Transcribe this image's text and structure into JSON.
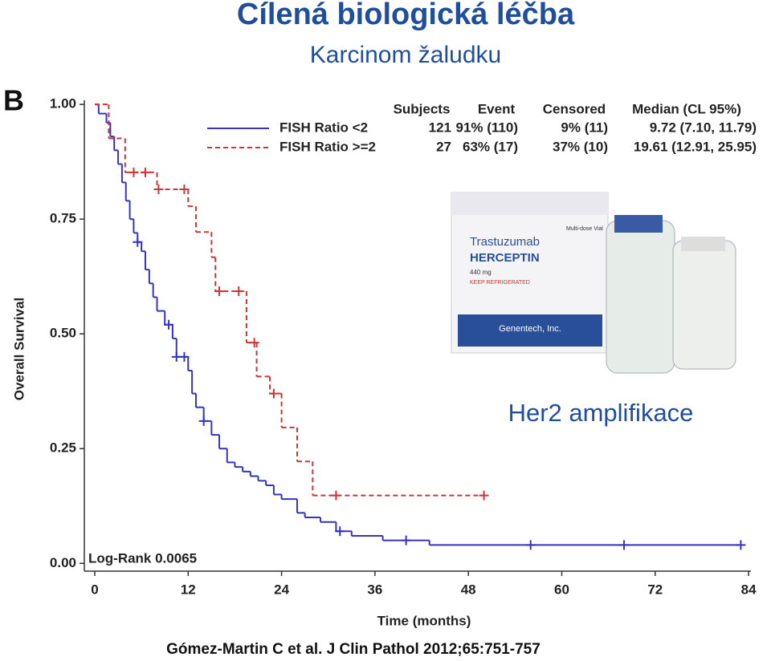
{
  "header": {
    "title": "Cílená biologická léčba",
    "subtitle": "Karcinom žaludku"
  },
  "panel_label": "B",
  "annotation": "Her2 amplifikace",
  "citation": "Gómez-Martin C et al. J Clin Pathol 2012;65:751-757",
  "product_image": {
    "texts": [
      "Trastuzumab",
      "HERCEPTIN",
      "440 mg",
      "KEEP REFRIGERATED",
      "Genentech, Inc.",
      "Multi-dose Vial"
    ]
  },
  "chart_data": {
    "type": "step",
    "x_label": "Time (months)",
    "y_label": "Overall Survival",
    "xlim": [
      -1.34,
      84.3
    ],
    "ylim": [
      -0.017,
      1.009
    ],
    "xticks": [
      0,
      12,
      24,
      36,
      48,
      60,
      72,
      84
    ],
    "yticks": [
      {
        "value": 0,
        "label": "0.00"
      },
      {
        "value": 0.25,
        "label": "0.25"
      },
      {
        "value": 0.5,
        "label": "0.50"
      },
      {
        "value": 0.75,
        "label": "0.75"
      },
      {
        "value": 1,
        "label": "1.00"
      }
    ],
    "annotation": "Log-Rank  0.0065",
    "series": [
      {
        "name": "FISH Ratio <2",
        "color": "#3434c0",
        "linestyle": "solid",
        "x": [
          0,
          0.5,
          1.5,
          2,
          2.5,
          3,
          3.5,
          4,
          4.5,
          5,
          5.5,
          6,
          6.5,
          7,
          7.5,
          8,
          9,
          10,
          10.5,
          12,
          12.5,
          13,
          14,
          15,
          16,
          17,
          18,
          19,
          20,
          21,
          22,
          23,
          24,
          26,
          27,
          29,
          31,
          33,
          37,
          43,
          82.8
        ],
        "values": [
          1.0,
          0.98,
          0.96,
          0.93,
          0.9,
          0.87,
          0.83,
          0.79,
          0.75,
          0.72,
          0.7,
          0.68,
          0.64,
          0.61,
          0.58,
          0.55,
          0.52,
          0.49,
          0.45,
          0.42,
          0.37,
          0.34,
          0.31,
          0.28,
          0.25,
          0.22,
          0.21,
          0.2,
          0.19,
          0.18,
          0.17,
          0.15,
          0.14,
          0.11,
          0.1,
          0.09,
          0.07,
          0.06,
          0.05,
          0.04,
          0.04
        ],
        "censored_x": [
          5.5,
          9.5,
          10.5,
          11.5,
          14,
          31.5,
          40,
          56,
          68,
          83
        ],
        "censored_values": [
          0.7,
          0.52,
          0.45,
          0.45,
          0.31,
          0.07,
          0.05,
          0.04,
          0.04,
          0.04
        ]
      },
      {
        "name": "FISH Ratio >=2",
        "color": "#d03434",
        "linestyle": "dashed",
        "x": [
          0,
          1.8,
          3.9,
          8,
          12,
          13,
          15,
          15.5,
          19.5,
          20.8,
          22.5,
          24,
          26,
          28,
          50.5
        ],
        "values": [
          1.0,
          0.926,
          0.852,
          0.815,
          0.778,
          0.722,
          0.667,
          0.593,
          0.481,
          0.407,
          0.37,
          0.296,
          0.222,
          0.148,
          0.148
        ],
        "censored_x": [
          5,
          6.5,
          8.2,
          11.5,
          16,
          18.5,
          20.5,
          23,
          31,
          50
        ],
        "censored_values": [
          0.852,
          0.852,
          0.815,
          0.815,
          0.593,
          0.593,
          0.481,
          0.37,
          0.148,
          0.148
        ]
      }
    ],
    "stats_table": {
      "columns": [
        "Subjects",
        "Event",
        "Censored",
        "Median (CL 95%)"
      ],
      "rows": [
        [
          121,
          "91% (110)",
          "9% (11)",
          "9.72 (7.10, 11.79)"
        ],
        [
          27,
          "63% (17)",
          "37% (10)",
          "19.61 (12.91, 25.95)"
        ]
      ]
    }
  }
}
